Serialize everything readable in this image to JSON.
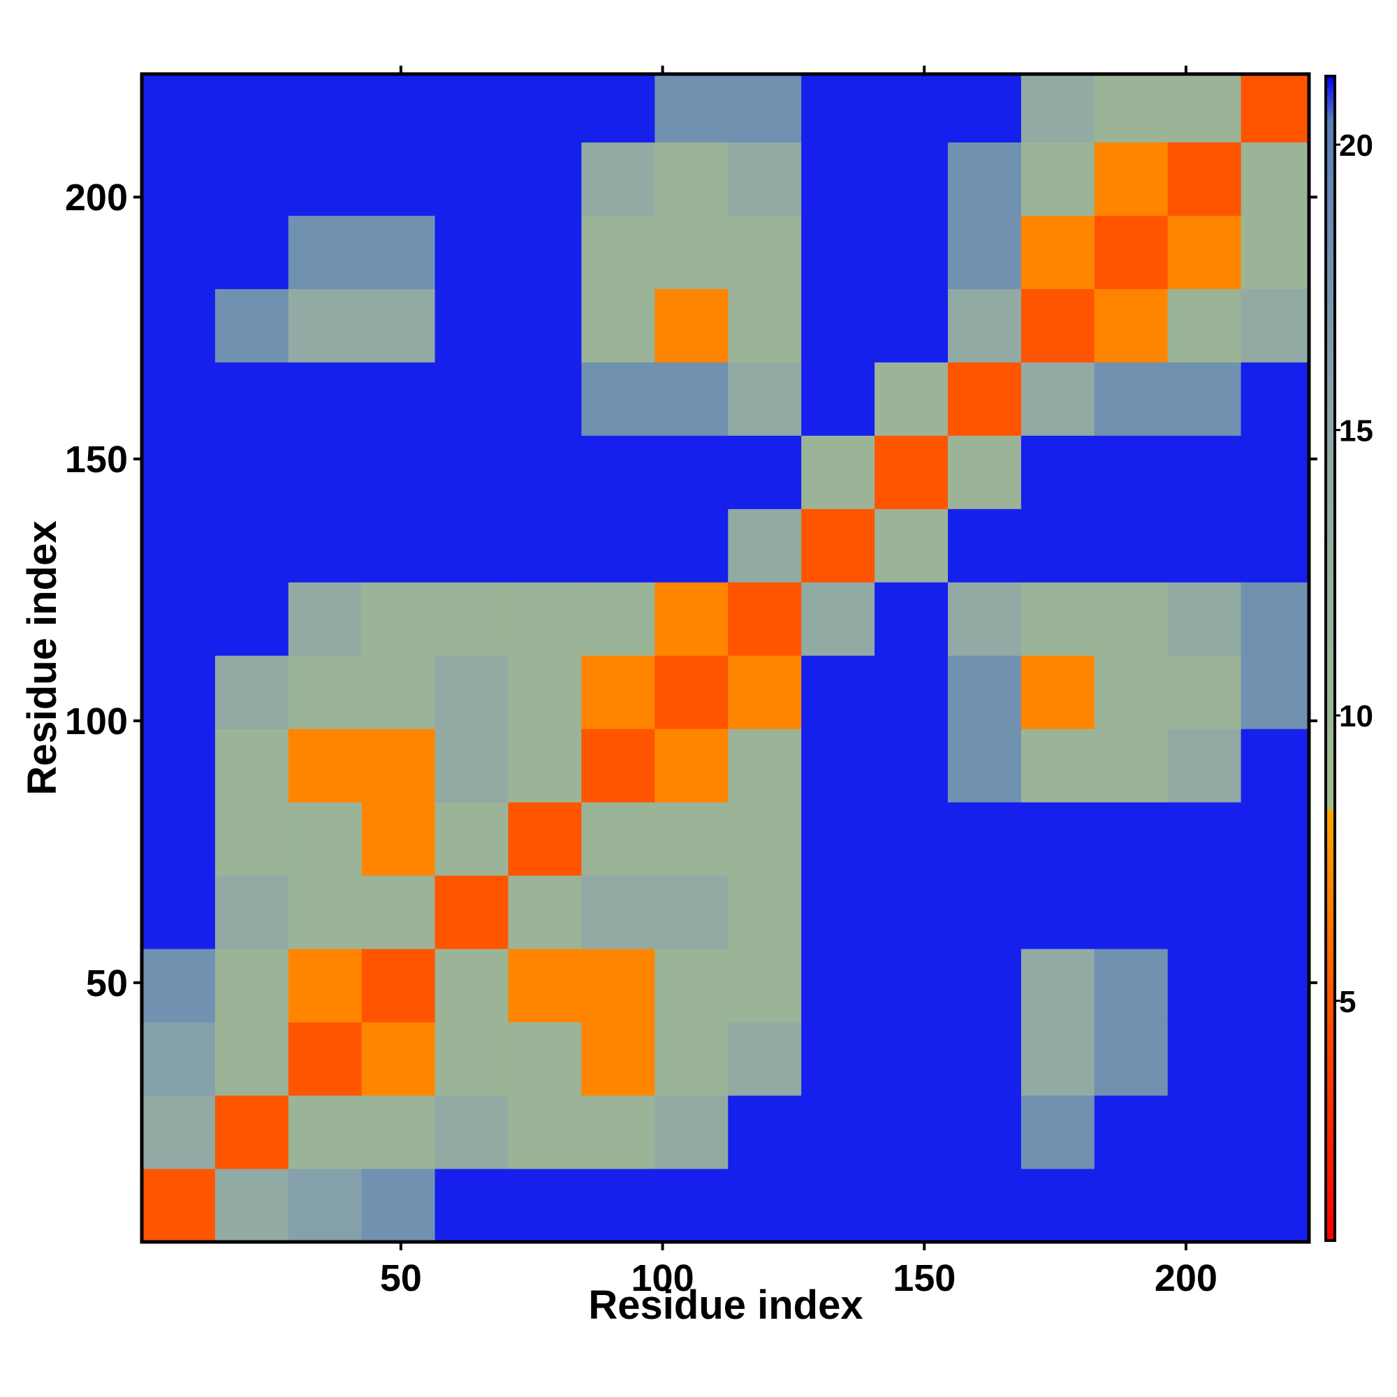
{
  "chart_data": {
    "type": "heatmap",
    "xlabel": "Residue index",
    "ylabel": "Residue index",
    "xlim": [
      0.5,
      223.5
    ],
    "ylim": [
      0.5,
      223.5
    ],
    "xticks": [
      50,
      100,
      150,
      200
    ],
    "yticks": [
      50,
      100,
      150,
      200
    ],
    "xbins": [
      0.5,
      14.5,
      28.5,
      42.5,
      56.5,
      70.5,
      84.5,
      98.5,
      112.5,
      126.5,
      140.5,
      154.5,
      168.5,
      182.5,
      196.5,
      210.5,
      223.5
    ],
    "ybins": [
      0.5,
      14.5,
      28.5,
      42.5,
      56.5,
      70.5,
      84.5,
      98.5,
      112.5,
      126.5,
      140.5,
      154.5,
      168.5,
      182.5,
      196.5,
      210.5,
      223.5
    ],
    "z": [
      [
        5,
        14,
        16,
        18,
        21,
        21,
        21,
        21,
        21,
        21,
        21,
        21,
        21,
        21,
        21,
        21
      ],
      [
        14,
        5,
        11,
        11,
        14,
        11,
        11,
        14,
        21,
        21,
        21,
        21,
        18,
        21,
        21,
        21
      ],
      [
        16,
        11,
        5,
        7,
        11,
        11,
        7,
        11,
        14,
        21,
        21,
        21,
        14,
        18,
        21,
        21
      ],
      [
        18,
        11,
        7,
        5,
        11,
        7,
        7,
        11,
        11,
        21,
        21,
        21,
        14,
        18,
        21,
        21
      ],
      [
        21,
        14,
        11,
        11,
        5,
        11,
        14,
        14,
        11,
        21,
        21,
        21,
        21,
        21,
        21,
        21
      ],
      [
        21,
        11,
        11,
        7,
        11,
        5,
        11,
        11,
        11,
        21,
        21,
        21,
        21,
        21,
        21,
        21
      ],
      [
        21,
        11,
        7,
        7,
        14,
        11,
        5,
        7,
        11,
        21,
        21,
        18,
        11,
        11,
        14,
        21
      ],
      [
        21,
        14,
        11,
        11,
        14,
        11,
        7,
        5,
        7,
        21,
        21,
        18,
        7,
        11,
        11,
        18
      ],
      [
        21,
        21,
        14,
        11,
        11,
        11,
        11,
        7,
        5,
        14,
        21,
        14,
        11,
        11,
        14,
        18
      ],
      [
        21,
        21,
        21,
        21,
        21,
        21,
        21,
        21,
        14,
        5,
        11,
        21,
        21,
        21,
        21,
        21
      ],
      [
        21,
        21,
        21,
        21,
        21,
        21,
        21,
        21,
        21,
        11,
        5,
        11,
        21,
        21,
        21,
        21
      ],
      [
        21,
        21,
        21,
        21,
        21,
        21,
        18,
        18,
        14,
        21,
        11,
        5,
        14,
        18,
        18,
        21
      ],
      [
        21,
        18,
        14,
        14,
        21,
        21,
        11,
        7,
        11,
        21,
        21,
        14,
        5,
        7,
        11,
        14
      ],
      [
        21,
        21,
        18,
        18,
        21,
        21,
        11,
        11,
        11,
        21,
        21,
        18,
        7,
        5,
        7,
        11
      ],
      [
        21,
        21,
        21,
        21,
        21,
        21,
        14,
        11,
        14,
        21,
        21,
        18,
        11,
        7,
        5,
        11
      ],
      [
        21,
        21,
        21,
        21,
        21,
        21,
        21,
        18,
        18,
        21,
        21,
        21,
        14,
        11,
        11,
        5
      ]
    ],
    "clim": [
      0.8,
      21.2
    ],
    "cticks": [
      5,
      10,
      15,
      20
    ],
    "colorscale": [
      [
        0.8,
        "#ff0000"
      ],
      [
        5,
        "#ff5500"
      ],
      [
        8.3,
        "#ffa500"
      ],
      [
        8.4,
        "#a3bd8c"
      ],
      [
        15,
        "#8ea7a8"
      ],
      [
        20.4,
        "#5a7fb8"
      ],
      [
        21.2,
        "#0000ff"
      ]
    ]
  }
}
